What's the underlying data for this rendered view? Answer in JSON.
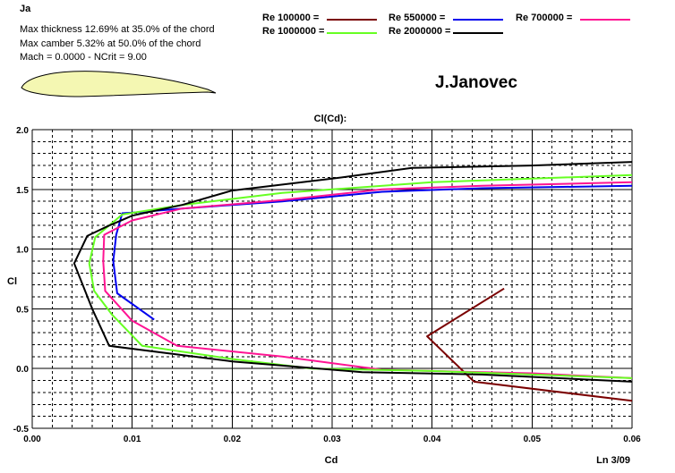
{
  "header": {
    "airfoil_name": "Ja",
    "thickness": "Max thickness 12.69% at 35.0% of the chord",
    "camber": "Max camber 5.32% at 50.0% of the chord",
    "mach": "Mach = 0.0000 - NCrit = 9.00",
    "author": "J.Janovec",
    "footer": "Ln 3/09"
  },
  "colors": {
    "airfoil_fill": "#f4f7b2",
    "grid": "#000000",
    "axes_text": "#000000"
  },
  "chart_data": {
    "type": "line",
    "title": "Cl(Cd):",
    "xlabel": "Cd",
    "ylabel": "Cl",
    "xlim": [
      0.0,
      0.06
    ],
    "ylim": [
      -0.5,
      2.0
    ],
    "x_ticks": [
      "0.00",
      "0.01",
      "0.02",
      "0.03",
      "0.04",
      "0.05",
      "0.06"
    ],
    "y_ticks": [
      "-0.5",
      "0.0",
      "0.5",
      "1.0",
      "1.5",
      "2.0"
    ],
    "grid": true,
    "series": [
      {
        "name": "Re 100000 =",
        "color": "#7a0000",
        "x": [
          0.0472,
          0.0395,
          0.0442,
          0.06
        ],
        "y": [
          0.67,
          0.27,
          -0.11,
          -0.27
        ]
      },
      {
        "name": "Re 550000 =",
        "color": "#0000ee",
        "x": [
          0.0122,
          0.0085,
          0.0081,
          0.0084,
          0.009,
          0.0107,
          0.015,
          0.025,
          0.035,
          0.045,
          0.06
        ],
        "y": [
          0.41,
          0.63,
          0.9,
          1.12,
          1.3,
          1.31,
          1.34,
          1.4,
          1.48,
          1.51,
          1.53
        ]
      },
      {
        "name": "Re 700000 =",
        "color": "#ff1493",
        "x": [
          0.06,
          0.05,
          0.035,
          0.025,
          0.0145,
          0.01,
          0.0073,
          0.0071,
          0.0072,
          0.01,
          0.015,
          0.025,
          0.035,
          0.045,
          0.06
        ],
        "y": [
          -0.08,
          -0.04,
          -0.01,
          0.1,
          0.19,
          0.4,
          0.65,
          0.9,
          1.12,
          1.24,
          1.34,
          1.41,
          1.5,
          1.53,
          1.56
        ]
      },
      {
        "name": "Re 1000000 =",
        "color": "#66ff22",
        "x": [
          0.06,
          0.05,
          0.04,
          0.028,
          0.02,
          0.011,
          0.008,
          0.0062,
          0.0057,
          0.0063,
          0.009,
          0.015,
          0.025,
          0.04,
          0.05,
          0.06
        ],
        "y": [
          -0.08,
          -0.05,
          -0.02,
          0.0,
          0.08,
          0.19,
          0.45,
          0.65,
          0.88,
          1.1,
          1.29,
          1.37,
          1.47,
          1.56,
          1.59,
          1.62
        ]
      },
      {
        "name": "Re 2000000 =",
        "color": "#000000",
        "x": [
          0.06,
          0.045,
          0.033,
          0.02,
          0.0077,
          0.006,
          0.0042,
          0.0055,
          0.0075,
          0.01,
          0.015,
          0.02,
          0.03,
          0.038,
          0.05,
          0.06
        ],
        "y": [
          -0.11,
          -0.05,
          -0.03,
          0.06,
          0.19,
          0.5,
          0.88,
          1.11,
          1.19,
          1.28,
          1.37,
          1.49,
          1.59,
          1.68,
          1.7,
          1.73
        ]
      }
    ]
  }
}
